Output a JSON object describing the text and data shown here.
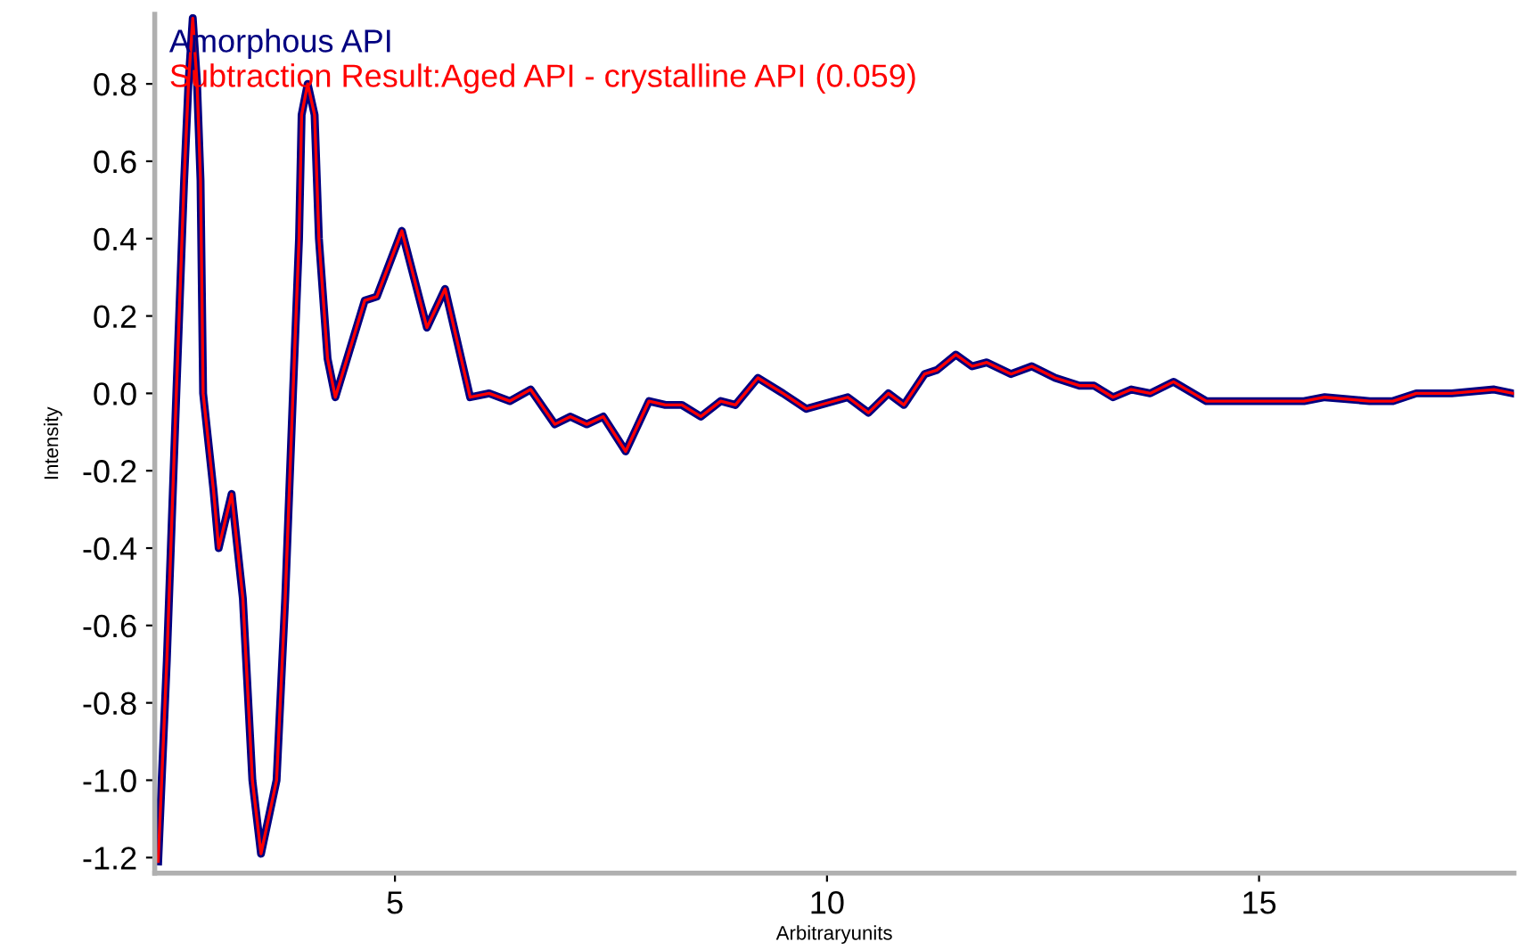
{
  "chart_data": {
    "type": "line",
    "xlabel": "Arbitraryunits",
    "ylabel": "Intensity",
    "xlim": [
      2.22,
      17.95
    ],
    "ylim": [
      -1.24,
      0.98
    ],
    "xticks": [
      5,
      10,
      15
    ],
    "yticks": [
      {
        "value": -1.2,
        "label": "-1.2"
      },
      {
        "value": -1.0,
        "label": "-1.0"
      },
      {
        "value": -0.8,
        "label": "-0.8"
      },
      {
        "value": -0.6,
        "label": "-0.6"
      },
      {
        "value": -0.4,
        "label": "-0.4"
      },
      {
        "value": -0.2,
        "label": "-0.2"
      },
      {
        "value": 0.0,
        "label": "0.0"
      },
      {
        "value": 0.2,
        "label": "0.2"
      },
      {
        "value": 0.4,
        "label": "0.4"
      },
      {
        "value": 0.6,
        "label": "0.6"
      },
      {
        "value": 0.8,
        "label": "0.8"
      }
    ],
    "grid": false,
    "legend": "top left",
    "marker": "none",
    "line_style": "solid",
    "x": [
      2.26,
      2.36,
      2.47,
      2.56,
      2.61,
      2.66,
      2.71,
      2.75,
      2.78,
      2.9,
      2.96,
      3.11,
      3.24,
      3.35,
      3.45,
      3.63,
      3.73,
      3.82,
      3.89,
      3.92,
      3.99,
      4.07,
      4.12,
      4.22,
      4.31,
      4.65,
      4.79,
      5.08,
      5.37,
      5.58,
      5.87,
      6.09,
      6.33,
      6.57,
      6.85,
      7.03,
      7.22,
      7.41,
      7.67,
      7.94,
      8.13,
      8.32,
      8.54,
      8.77,
      8.94,
      9.2,
      9.49,
      9.76,
      10.24,
      10.48,
      10.71,
      10.89,
      11.13,
      11.27,
      11.49,
      11.68,
      11.85,
      12.13,
      12.37,
      12.64,
      12.92,
      13.09,
      13.31,
      13.52,
      13.74,
      14.01,
      14.39,
      14.77,
      15.04,
      15.52,
      15.76,
      16.28,
      16.55,
      16.82,
      17.23,
      17.72,
      17.94
    ],
    "series": [
      {
        "name": "Amorphous API",
        "color": "#000080",
        "values": [
          -1.21,
          -0.69,
          0.0,
          0.55,
          0.8,
          0.97,
          0.8,
          0.55,
          0.0,
          -0.25,
          -0.4,
          -0.26,
          -0.53,
          -1.0,
          -1.19,
          -1.0,
          -0.53,
          0.0,
          0.4,
          0.72,
          0.8,
          0.72,
          0.4,
          0.09,
          -0.01,
          0.24,
          0.25,
          0.42,
          0.17,
          0.27,
          -0.01,
          0.0,
          -0.02,
          0.01,
          -0.08,
          -0.06,
          -0.08,
          -0.06,
          -0.15,
          -0.02,
          -0.03,
          -0.03,
          -0.06,
          -0.02,
          -0.03,
          0.04,
          0.0,
          -0.04,
          -0.01,
          -0.05,
          0.0,
          -0.03,
          0.05,
          0.06,
          0.1,
          0.07,
          0.08,
          0.05,
          0.07,
          0.04,
          0.02,
          0.02,
          -0.01,
          0.01,
          0.0,
          0.03,
          -0.02,
          -0.02,
          -0.02,
          -0.02,
          -0.01,
          -0.02,
          -0.02,
          0.0,
          0.0,
          0.01,
          0.0
        ]
      },
      {
        "name": "Subtraction Result:Aged API - crystalline API (0.059)",
        "color": "#ff0000",
        "values": [
          -1.21,
          -0.69,
          0.0,
          0.55,
          0.8,
          0.97,
          0.8,
          0.55,
          0.0,
          -0.25,
          -0.4,
          -0.26,
          -0.53,
          -1.0,
          -1.19,
          -1.0,
          -0.53,
          0.0,
          0.4,
          0.72,
          0.8,
          0.72,
          0.4,
          0.09,
          -0.01,
          0.24,
          0.25,
          0.42,
          0.17,
          0.27,
          -0.01,
          0.0,
          -0.02,
          0.01,
          -0.08,
          -0.06,
          -0.08,
          -0.06,
          -0.15,
          -0.02,
          -0.03,
          -0.03,
          -0.06,
          -0.02,
          -0.03,
          0.04,
          0.0,
          -0.04,
          -0.01,
          -0.05,
          0.0,
          -0.03,
          0.05,
          0.06,
          0.1,
          0.07,
          0.08,
          0.05,
          0.07,
          0.04,
          0.02,
          0.02,
          -0.01,
          0.01,
          0.0,
          0.03,
          -0.02,
          -0.02,
          -0.02,
          -0.02,
          -0.01,
          -0.02,
          -0.02,
          0.0,
          0.0,
          0.01,
          0.0
        ]
      }
    ]
  }
}
